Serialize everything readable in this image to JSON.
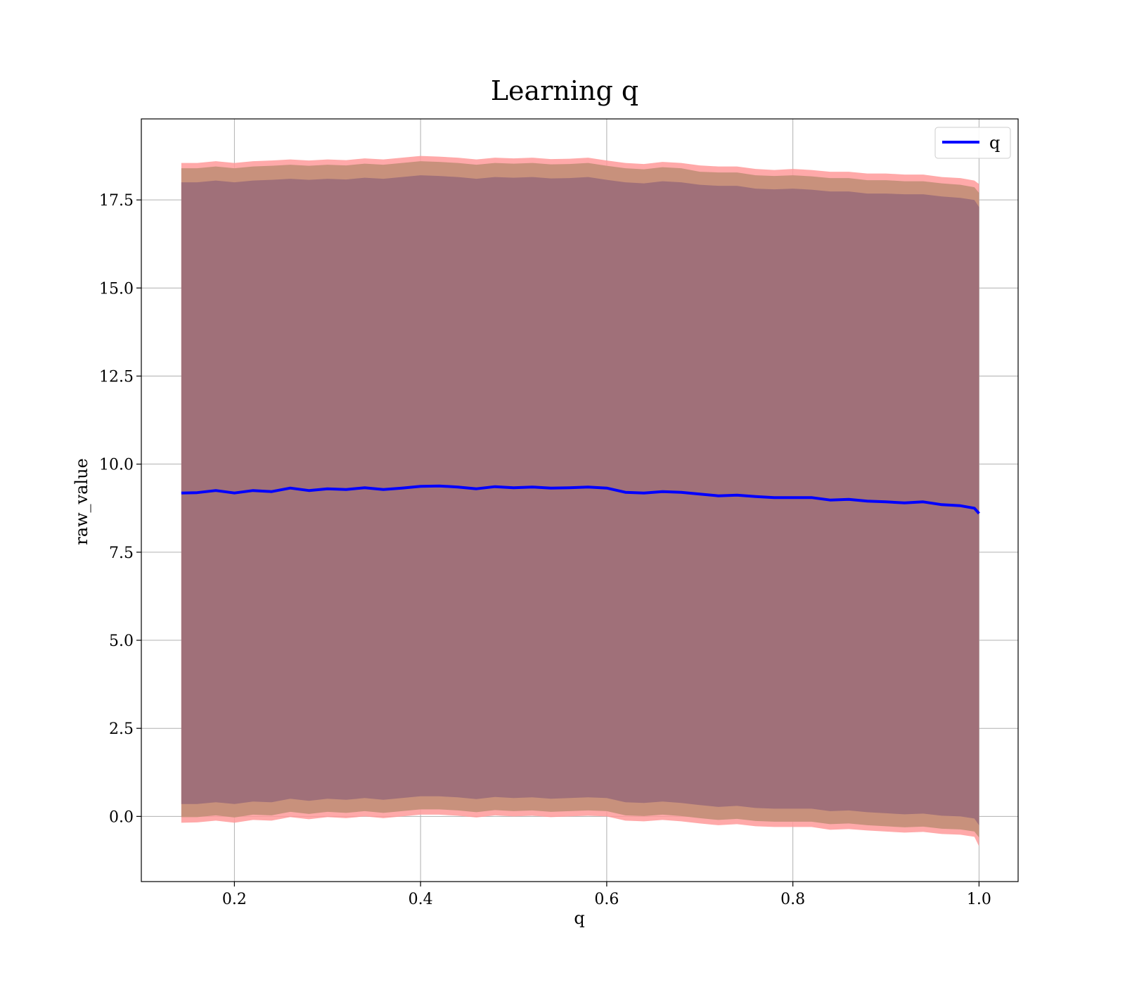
{
  "chart_data": {
    "type": "line",
    "title": "Learning q",
    "xlabel": "q",
    "ylabel": "raw_value",
    "xlim": [
      0.1,
      1.042
    ],
    "ylim": [
      -1.85,
      19.8
    ],
    "x_ticks": [
      0.2,
      0.4,
      0.6,
      0.8,
      1.0
    ],
    "x_tick_labels": [
      "0.2",
      "0.4",
      "0.6",
      "0.8",
      "1.0"
    ],
    "y_ticks": [
      0.0,
      2.5,
      5.0,
      7.5,
      10.0,
      12.5,
      15.0,
      17.5
    ],
    "y_tick_labels": [
      "0.0",
      "2.5",
      "5.0",
      "7.5",
      "10.0",
      "12.5",
      "15.0",
      "17.5"
    ],
    "grid": true,
    "legend": {
      "location": "upper right",
      "entries": [
        "q"
      ]
    },
    "colors": {
      "line": "#0000ff",
      "band_outer": "#ff9a9a",
      "band_middle": "#c8917c",
      "band_inner": "#a07079",
      "grid": "#b0b0b0"
    },
    "series": [
      {
        "name": "q",
        "x": [
          0.143,
          0.16,
          0.18,
          0.2,
          0.22,
          0.24,
          0.26,
          0.28,
          0.3,
          0.32,
          0.34,
          0.36,
          0.38,
          0.4,
          0.42,
          0.44,
          0.46,
          0.48,
          0.5,
          0.52,
          0.54,
          0.56,
          0.58,
          0.6,
          0.62,
          0.64,
          0.66,
          0.68,
          0.7,
          0.72,
          0.74,
          0.76,
          0.78,
          0.8,
          0.82,
          0.84,
          0.86,
          0.88,
          0.9,
          0.92,
          0.94,
          0.96,
          0.98,
          0.995,
          1.0
        ],
        "y": [
          9.18,
          9.19,
          9.25,
          9.18,
          9.25,
          9.22,
          9.32,
          9.25,
          9.3,
          9.28,
          9.33,
          9.28,
          9.32,
          9.37,
          9.38,
          9.35,
          9.3,
          9.36,
          9.33,
          9.35,
          9.32,
          9.33,
          9.35,
          9.32,
          9.2,
          9.18,
          9.22,
          9.2,
          9.15,
          9.1,
          9.12,
          9.08,
          9.05,
          9.05,
          9.05,
          8.98,
          9.0,
          8.95,
          8.93,
          8.9,
          8.93,
          8.85,
          8.82,
          8.75,
          8.6
        ],
        "band_outer": {
          "upper": [
            18.55,
            18.55,
            18.6,
            18.55,
            18.6,
            18.62,
            18.65,
            18.62,
            18.65,
            18.63,
            18.68,
            18.65,
            18.7,
            18.75,
            18.73,
            18.7,
            18.65,
            18.7,
            18.68,
            18.7,
            18.66,
            18.67,
            18.7,
            18.62,
            18.55,
            18.52,
            18.58,
            18.55,
            18.48,
            18.45,
            18.45,
            18.38,
            18.35,
            18.38,
            18.35,
            18.3,
            18.3,
            18.25,
            18.25,
            18.22,
            18.22,
            18.15,
            18.12,
            18.05,
            17.95
          ],
          "lower": [
            -0.18,
            -0.17,
            -0.12,
            -0.18,
            -0.1,
            -0.12,
            -0.02,
            -0.08,
            -0.02,
            -0.05,
            0.0,
            -0.05,
            0.0,
            0.05,
            0.05,
            0.02,
            -0.03,
            0.03,
            0.0,
            0.02,
            -0.02,
            0.0,
            0.02,
            0.0,
            -0.12,
            -0.14,
            -0.1,
            -0.14,
            -0.2,
            -0.25,
            -0.22,
            -0.28,
            -0.3,
            -0.3,
            -0.3,
            -0.38,
            -0.36,
            -0.4,
            -0.43,
            -0.46,
            -0.44,
            -0.5,
            -0.52,
            -0.58,
            -0.85
          ]
        },
        "band_middle": {
          "upper": [
            18.4,
            18.4,
            18.45,
            18.4,
            18.45,
            18.47,
            18.5,
            18.47,
            18.5,
            18.48,
            18.53,
            18.5,
            18.55,
            18.6,
            18.58,
            18.55,
            18.5,
            18.55,
            18.53,
            18.55,
            18.51,
            18.52,
            18.55,
            18.47,
            18.4,
            18.37,
            18.43,
            18.4,
            18.3,
            18.28,
            18.28,
            18.2,
            18.18,
            18.2,
            18.17,
            18.12,
            18.12,
            18.06,
            18.06,
            18.03,
            18.03,
            17.97,
            17.93,
            17.86,
            17.7
          ],
          "lower": [
            -0.02,
            -0.02,
            0.03,
            -0.03,
            0.05,
            0.03,
            0.13,
            0.07,
            0.13,
            0.1,
            0.15,
            0.1,
            0.15,
            0.2,
            0.2,
            0.17,
            0.12,
            0.18,
            0.15,
            0.17,
            0.13,
            0.15,
            0.17,
            0.15,
            0.03,
            0.01,
            0.05,
            0.01,
            -0.05,
            -0.1,
            -0.07,
            -0.13,
            -0.15,
            -0.15,
            -0.15,
            -0.22,
            -0.2,
            -0.25,
            -0.28,
            -0.31,
            -0.29,
            -0.35,
            -0.37,
            -0.43,
            -0.6
          ]
        },
        "band_inner": {
          "upper": [
            18.0,
            18.0,
            18.05,
            18.0,
            18.05,
            18.07,
            18.1,
            18.07,
            18.1,
            18.08,
            18.13,
            18.1,
            18.15,
            18.2,
            18.18,
            18.15,
            18.1,
            18.15,
            18.13,
            18.15,
            18.11,
            18.12,
            18.15,
            18.07,
            18.0,
            17.97,
            18.03,
            18.0,
            17.93,
            17.9,
            17.9,
            17.82,
            17.8,
            17.82,
            17.79,
            17.74,
            17.74,
            17.68,
            17.68,
            17.66,
            17.66,
            17.6,
            17.56,
            17.5,
            17.3
          ],
          "lower": [
            0.35,
            0.35,
            0.4,
            0.35,
            0.42,
            0.4,
            0.5,
            0.44,
            0.5,
            0.47,
            0.52,
            0.47,
            0.52,
            0.57,
            0.57,
            0.54,
            0.49,
            0.55,
            0.52,
            0.54,
            0.5,
            0.52,
            0.54,
            0.52,
            0.4,
            0.38,
            0.42,
            0.38,
            0.32,
            0.27,
            0.3,
            0.24,
            0.22,
            0.22,
            0.22,
            0.15,
            0.17,
            0.12,
            0.09,
            0.06,
            0.08,
            0.02,
            0.0,
            -0.06,
            -0.25
          ]
        }
      }
    ]
  }
}
